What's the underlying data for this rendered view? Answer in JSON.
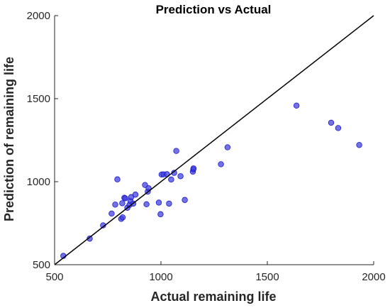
{
  "chart_data": {
    "type": "scatter",
    "title": "Prediction vs Actual",
    "xlabel": "Actual remaining life",
    "ylabel": "Prediction of remaining life",
    "xlim": [
      500,
      2000
    ],
    "ylim": [
      500,
      2000
    ],
    "xticks": [
      500,
      1000,
      1500,
      2000
    ],
    "yticks": [
      500,
      1000,
      1500,
      2000
    ],
    "grid": false,
    "legend": "none",
    "reference_line": {
      "from": [
        500,
        500
      ],
      "to": [
        2000,
        2000
      ],
      "color": "#000000"
    },
    "point_color": "#3b3bdd",
    "series": [
      {
        "x": [
          541,
          665,
          728,
          768,
          785,
          795,
          813,
          818,
          820,
          828,
          832,
          842,
          852,
          857,
          860,
          870,
          880,
          925,
          932,
          938,
          942,
          990,
          998,
          1003,
          1012,
          1028,
          1038,
          1048,
          1062,
          1072,
          1092,
          1112,
          1150,
          1152,
          1153,
          1282,
          1313,
          1637,
          1800,
          1833,
          1932
        ],
        "y": [
          553,
          657,
          737,
          808,
          862,
          1014,
          776,
          870,
          785,
          903,
          900,
          843,
          860,
          883,
          907,
          868,
          922,
          980,
          864,
          940,
          960,
          874,
          804,
          1043,
          1044,
          1045,
          868,
          1013,
          1053,
          1185,
          1033,
          890,
          1060,
          1074,
          1080,
          1105,
          1207,
          1458,
          1355,
          1323,
          1221
        ]
      }
    ]
  }
}
